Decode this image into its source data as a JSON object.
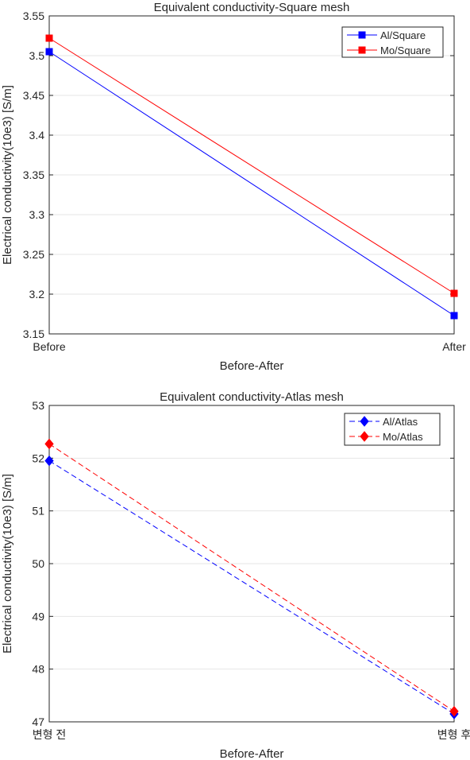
{
  "chart_data": [
    {
      "type": "line",
      "title": "Equivalent conductivity-Square mesh",
      "xlabel": "Before-After",
      "ylabel": "Electrical conductivity(10e3) [S/m]",
      "categories": [
        "Before",
        "After"
      ],
      "ylim": [
        3.15,
        3.55
      ],
      "yticks": [
        "3.15",
        "3.2",
        "3.25",
        "3.3",
        "3.35",
        "3.4",
        "3.45",
        "3.5",
        "3.55"
      ],
      "grid": true,
      "legend_position": "top-right",
      "series": [
        {
          "name": "Al/Square",
          "values": [
            3.505,
            3.173
          ],
          "color": "#0000ff",
          "marker": "square",
          "line": "solid"
        },
        {
          "name": "Mo/Square",
          "values": [
            3.522,
            3.201
          ],
          "color": "#ff0000",
          "marker": "square",
          "line": "solid"
        }
      ]
    },
    {
      "type": "line",
      "title": "Equivalent conductivity-Atlas mesh",
      "xlabel": "Before-After",
      "ylabel": "Electrical conductivity(10e3) [S/m]",
      "categories": [
        "변형 전",
        "변형 후"
      ],
      "ylim": [
        47,
        53
      ],
      "yticks": [
        "47",
        "48",
        "49",
        "50",
        "51",
        "52",
        "53"
      ],
      "grid": true,
      "legend_position": "top-right",
      "series": [
        {
          "name": "Al/Atlas",
          "values": [
            51.95,
            47.15
          ],
          "color": "#0000ff",
          "marker": "diamond",
          "line": "dashed"
        },
        {
          "name": "Mo/Atlas",
          "values": [
            52.27,
            47.2
          ],
          "color": "#ff0000",
          "marker": "diamond",
          "line": "dashed"
        }
      ]
    }
  ]
}
